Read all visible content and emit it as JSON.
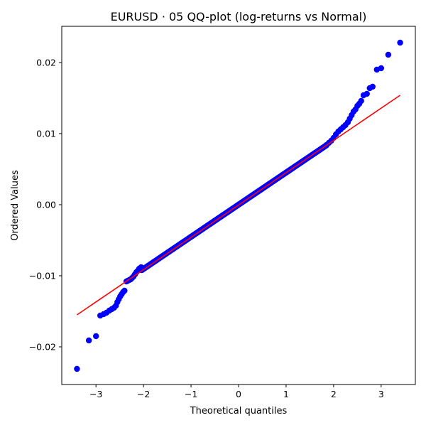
{
  "chart_data": {
    "type": "scatter",
    "title": "EURUSD · 05 QQ-plot (log-returns vs Normal)",
    "xlabel": "Theoretical quantiles",
    "ylabel": "Ordered Values",
    "xlim": [
      -3.72,
      3.72
    ],
    "ylim": [
      -0.0253,
      0.0251
    ],
    "xticks": [
      -3,
      -2,
      -1,
      0,
      1,
      2,
      3
    ],
    "xtick_labels": [
      "−3",
      "−2",
      "−1",
      "0",
      "1",
      "2",
      "3"
    ],
    "yticks": [
      -0.02,
      -0.01,
      0.0,
      0.01,
      0.02
    ],
    "ytick_labels": [
      "−0.02",
      "−0.01",
      "0.00",
      "0.01",
      "0.02"
    ],
    "grid": false,
    "legend": null,
    "series": [
      {
        "marker_color": "#0000ff",
        "points": [
          [
            -3.4,
            -0.0231
          ],
          [
            -3.15,
            -0.0191
          ],
          [
            -3.0,
            -0.0185
          ],
          [
            -2.91,
            -0.0156
          ],
          [
            -2.84,
            -0.0154
          ],
          [
            -2.78,
            -0.0152
          ],
          [
            -2.72,
            -0.0149
          ],
          [
            -2.67,
            -0.0147
          ],
          [
            -2.62,
            -0.0145
          ],
          [
            -2.58,
            -0.0142
          ],
          [
            -2.55,
            -0.0137
          ],
          [
            -2.52,
            -0.0133
          ],
          [
            -2.49,
            -0.0129
          ],
          [
            -2.46,
            -0.0126
          ],
          [
            -2.43,
            -0.0123
          ],
          [
            -2.4,
            -0.0121
          ],
          [
            -2.36,
            -0.0108
          ],
          [
            -2.33,
            -0.0107
          ],
          [
            -2.3,
            -0.0106
          ],
          [
            -2.27,
            -0.0105
          ],
          [
            -2.24,
            -0.0103
          ],
          [
            -2.21,
            -0.0101
          ],
          [
            -2.18,
            -0.0098
          ],
          [
            -2.15,
            -0.0095
          ],
          [
            -2.12,
            -0.0093
          ],
          [
            -2.09,
            -0.009
          ],
          [
            -2.05,
            -0.0088
          ],
          [
            1.85,
            0.0084
          ],
          [
            1.9,
            0.0087
          ],
          [
            1.95,
            0.009
          ],
          [
            2.0,
            0.0094
          ],
          [
            2.05,
            0.0099
          ],
          [
            2.1,
            0.0103
          ],
          [
            2.15,
            0.0106
          ],
          [
            2.2,
            0.0109
          ],
          [
            2.25,
            0.0112
          ],
          [
            2.3,
            0.0116
          ],
          [
            2.34,
            0.0121
          ],
          [
            2.38,
            0.0126
          ],
          [
            2.42,
            0.0131
          ],
          [
            2.46,
            0.0134
          ],
          [
            2.5,
            0.0139
          ],
          [
            2.54,
            0.0142
          ],
          [
            2.58,
            0.0146
          ],
          [
            2.63,
            0.0154
          ],
          [
            2.7,
            0.0156
          ],
          [
            2.76,
            0.0164
          ],
          [
            2.82,
            0.0166
          ],
          [
            2.91,
            0.019
          ],
          [
            3.0,
            0.0192
          ],
          [
            3.15,
            0.0211
          ],
          [
            3.4,
            0.0228
          ]
        ],
        "body_range": [
          -2.05,
          1.85
        ],
        "body_slope": 0.00452,
        "body_intercept": 0.0
      }
    ],
    "reference_line": {
      "color": "#ff0000",
      "x": [
        -3.4,
        3.4
      ],
      "y": [
        -0.0155,
        0.0154
      ]
    }
  }
}
